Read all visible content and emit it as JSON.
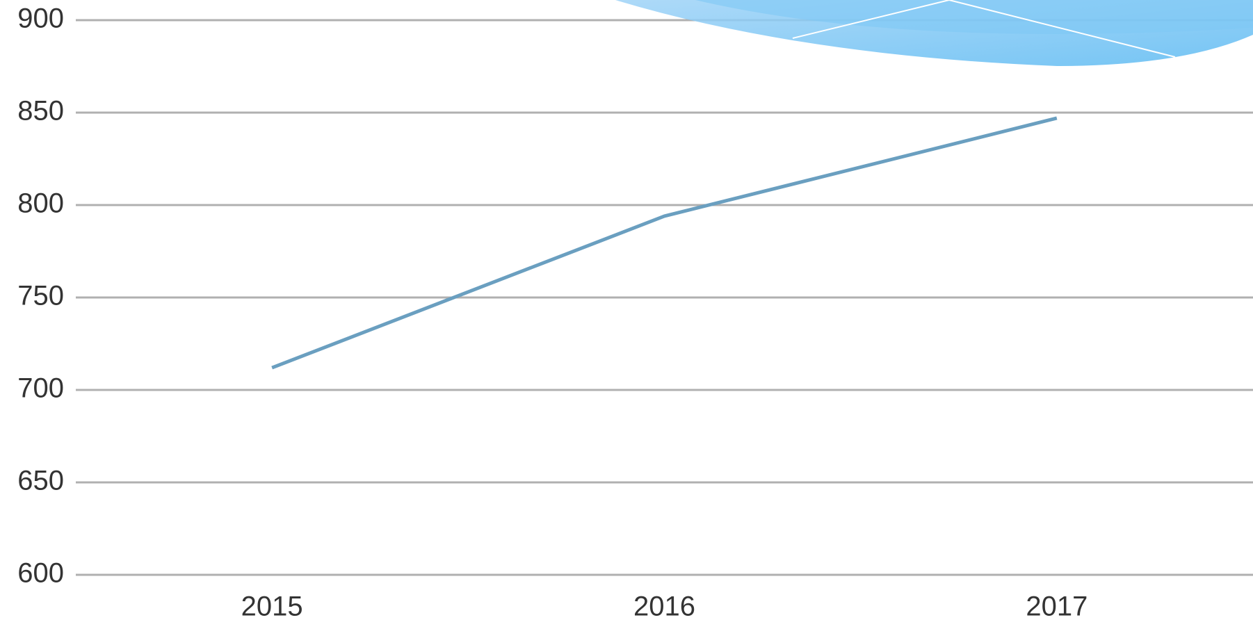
{
  "chart_data": {
    "type": "line",
    "categories": [
      "2015",
      "2016",
      "2017"
    ],
    "series": [
      {
        "color": "#6a9fc0",
        "values": [
          712,
          794,
          847
        ]
      }
    ],
    "ylim": [
      600,
      900
    ],
    "yticks": [
      600,
      650,
      700,
      750,
      800,
      850,
      900
    ],
    "grid": true
  }
}
